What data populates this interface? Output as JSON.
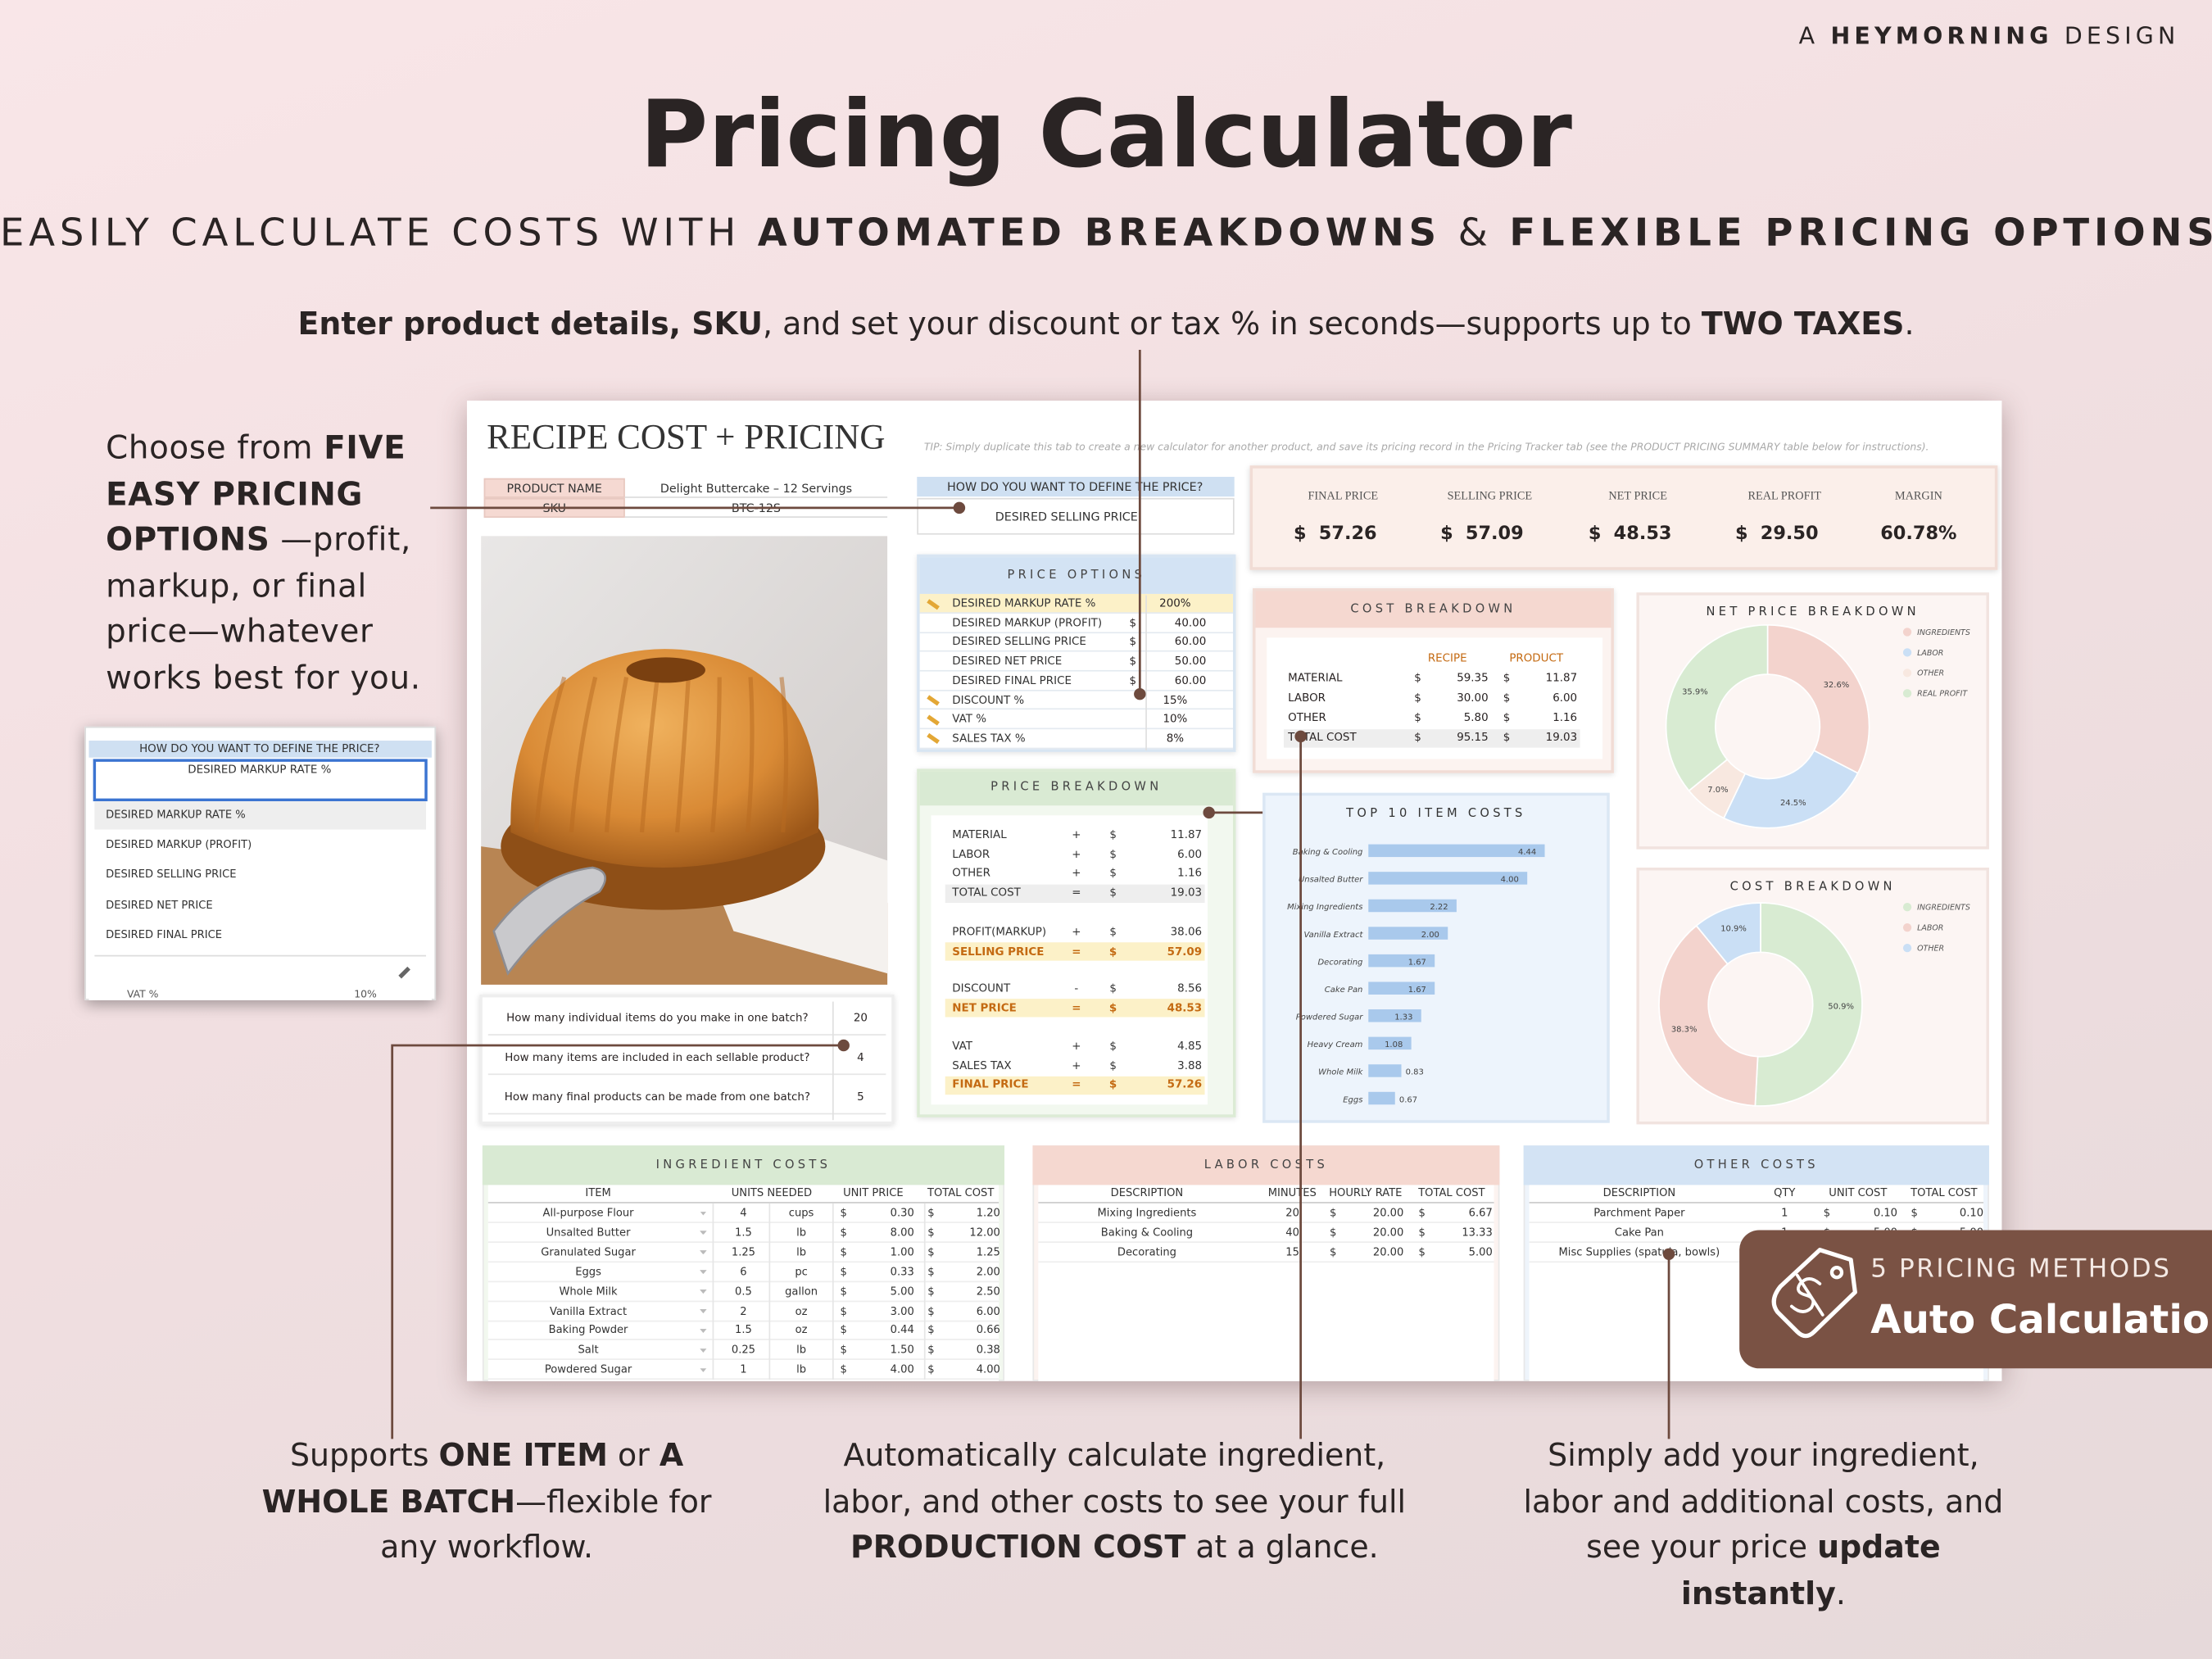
{
  "header": {
    "brand": [
      {
        "text": "A "
      },
      {
        "text": "HEYMORNING",
        "bold": true
      },
      {
        "text": " DESIGN"
      }
    ],
    "title": "Pricing Calculator",
    "subtitle": [
      {
        "text": "EASILY CALCULATE COSTS WITH "
      },
      {
        "text": "AUTOMATED BREAKDOWNS",
        "bold": true
      },
      {
        "text": " & "
      },
      {
        "text": "FLEXIBLE PRICING OPTIONS",
        "bold": true
      }
    ]
  },
  "callouts": {
    "top": [
      {
        "text": "Enter product details, SKU",
        "bold": true
      },
      {
        "text": ", and set your discount or tax % in seconds—supports up to "
      },
      {
        "text": "TWO TAXES",
        "bold": true
      },
      {
        "text": "."
      }
    ],
    "left": [
      {
        "text": "Choose from "
      },
      {
        "text": "FIVE EASY PRICING OPTIONS",
        "bold": true
      },
      {
        "text": " —profit, markup, or final price—whatever works best for you."
      }
    ],
    "bottom_left": [
      {
        "text": "Supports "
      },
      {
        "text": "ONE ITEM",
        "bold": true
      },
      {
        "text": " or "
      },
      {
        "text": "A WHOLE BATCH",
        "bold": true
      },
      {
        "text": "—flexible for any workflow."
      }
    ],
    "bottom_center": [
      {
        "text": "Automatically calculate ingredient, labor, and other costs to see your full "
      },
      {
        "text": "PRODUCTION COST",
        "bold": true
      },
      {
        "text": " at a glance."
      }
    ],
    "bottom_right": [
      {
        "text": "Simply add your ingredient, labor and additional costs, and see your price "
      },
      {
        "text": "update instantly",
        "bold": true
      },
      {
        "text": "."
      }
    ]
  },
  "badge": {
    "line1": "5 PRICING METHODS",
    "line2": "Auto Calculation"
  },
  "sheet": {
    "title": "RECIPE COST + PRICING",
    "tip": "TIP: Simply duplicate this tab to create a new calculator for another product, and save its pricing record in the Pricing Tracker tab (see the PRODUCT PRICING SUMMARY table below for instructions).",
    "product": {
      "rows": [
        [
          "PRODUCT NAME",
          "Delight Buttercake – 12 Servings"
        ],
        [
          "SKU",
          "BTC-12S"
        ]
      ]
    },
    "define": {
      "label": "HOW DO YOU WANT TO DEFINE THE PRICE?",
      "value": "DESIRED SELLING PRICE"
    },
    "summary": [
      [
        "FINAL PRICE",
        "$",
        "57.26"
      ],
      [
        "SELLING PRICE",
        "$",
        "57.09"
      ],
      [
        "NET PRICE",
        "$",
        "48.53"
      ],
      [
        "REAL PROFIT",
        "$",
        "29.50"
      ],
      [
        "MARGIN",
        "60.78%"
      ]
    ],
    "price_options": {
      "title": "PRICE OPTIONS",
      "rows": [
        [
          "DESIRED MARKUP RATE %",
          "200%"
        ],
        [
          "DESIRED MARKUP (PROFIT)",
          "$",
          "40.00"
        ],
        [
          "DESIRED SELLING PRICE",
          "$",
          "60.00"
        ],
        [
          "DESIRED NET PRICE",
          "$",
          "50.00"
        ],
        [
          "DESIRED FINAL PRICE",
          "$",
          "60.00"
        ],
        [
          "DISCOUNT %",
          "15%"
        ],
        [
          "VAT %",
          "10%"
        ],
        [
          "SALES TAX %",
          "8%"
        ]
      ]
    },
    "price_breakdown": {
      "title": "PRICE BREAKDOWN",
      "groups": [
        [
          [
            "MATERIAL",
            "+",
            "$",
            "11.87"
          ],
          [
            "LABOR",
            "+",
            "$",
            "6.00"
          ],
          [
            "OTHER",
            "+",
            "$",
            "1.16"
          ],
          [
            "TOTAL COST",
            "=",
            "$",
            "19.03"
          ]
        ],
        [
          [
            "PROFIT(MARKUP)",
            "+",
            "$",
            "38.06"
          ],
          [
            "SELLING PRICE",
            "=",
            "$",
            "57.09"
          ]
        ],
        [
          [
            "DISCOUNT",
            "-",
            "$",
            "8.56"
          ],
          [
            "NET PRICE",
            "=",
            "$",
            "48.53"
          ]
        ],
        [
          [
            "VAT",
            "+",
            "$",
            "4.85"
          ],
          [
            "SALES TAX",
            "+",
            "$",
            "3.88"
          ],
          [
            "FINAL PRICE",
            "=",
            "$",
            "57.26"
          ]
        ]
      ]
    },
    "cost_breakdown": {
      "title": "COST BREAKDOWN",
      "headers": [
        "RECIPE",
        "PRODUCT"
      ],
      "rows": [
        [
          "MATERIAL",
          "$",
          "59.35",
          "$",
          "11.87"
        ],
        [
          "LABOR",
          "$",
          "30.00",
          "$",
          "6.00"
        ],
        [
          "OTHER",
          "$",
          "5.80",
          "$",
          "1.16"
        ],
        [
          "TOTAL COST",
          "$",
          "95.15",
          "$",
          "19.03"
        ]
      ]
    },
    "batch": {
      "rows": [
        [
          "How many individual items do you make in one batch?",
          "20"
        ],
        [
          "How many items are included in each sellable product?",
          "4"
        ],
        [
          "How many final products can be made from one batch?",
          "5"
        ]
      ]
    },
    "top_items": {
      "type": "bar",
      "title": "TOP 10 ITEM COSTS",
      "color": "#a9c9ec",
      "categories": [
        "Baking & Cooling",
        "Unsalted Butter",
        "Mixing Ingredients",
        "Vanilla Extract",
        "Decorating",
        "Cake Pan",
        "Powdered Sugar",
        "Heavy Cream",
        "Whole Milk",
        "Eggs"
      ],
      "values": [
        4.44,
        4.0,
        2.22,
        2.0,
        1.67,
        1.67,
        1.33,
        1.08,
        0.83,
        0.67
      ],
      "value_labels": [
        "4.44",
        "4.00",
        "2.22",
        "2.00",
        "1.67",
        "1.67",
        "1.33",
        "1.08",
        "0.83",
        "0.67"
      ]
    },
    "net_price_chart": {
      "type": "donut",
      "title": "NET PRICE BREAKDOWN",
      "categories": [
        "INGREDIENTS",
        "LABOR",
        "OTHER",
        "REAL PROFIT"
      ],
      "values": [
        32.6,
        24.5,
        7.0,
        35.9
      ],
      "value_labels": [
        "32.6%",
        "24.5%",
        "7.0%",
        "35.9%"
      ],
      "colors": [
        "#f3d3cd",
        "#cadff5",
        "#f8e8e0",
        "#d8ebd2"
      ]
    },
    "cost_chart": {
      "type": "donut",
      "title": "COST BREAKDOWN",
      "categories": [
        "INGREDIENTS",
        "LABOR",
        "OTHER"
      ],
      "values": [
        50.9,
        38.3,
        10.9
      ],
      "value_labels": [
        "50.9%",
        "38.3%",
        "10.9%"
      ],
      "colors": [
        "#d8ebd2",
        "#f3d3cd",
        "#cadff5"
      ]
    },
    "ingredient_costs": {
      "title": "INGREDIENT COSTS",
      "headers": [
        "ITEM",
        "UNITS NEEDED",
        "UNIT PRICE",
        "TOTAL COST"
      ],
      "rows": [
        [
          "All-purpose Flour",
          "4",
          "cups",
          "$",
          "0.30",
          "$",
          "1.20"
        ],
        [
          "Unsalted Butter",
          "1.5",
          "lb",
          "$",
          "8.00",
          "$",
          "12.00"
        ],
        [
          "Granulated Sugar",
          "1.25",
          "lb",
          "$",
          "1.00",
          "$",
          "1.25"
        ],
        [
          "Eggs",
          "6",
          "pc",
          "$",
          "0.33",
          "$",
          "2.00"
        ],
        [
          "Whole Milk",
          "0.5",
          "gallon",
          "$",
          "5.00",
          "$",
          "2.50"
        ],
        [
          "Vanilla Extract",
          "2",
          "oz",
          "$",
          "3.00",
          "$",
          "6.00"
        ],
        [
          "Baking Powder",
          "1.5",
          "oz",
          "$",
          "0.44",
          "$",
          "0.66"
        ],
        [
          "Salt",
          "0.25",
          "lb",
          "$",
          "1.50",
          "$",
          "0.38"
        ],
        [
          "Powdered Sugar",
          "1",
          "lb",
          "$",
          "4.00",
          "$",
          "4.00"
        ]
      ]
    },
    "labor_costs": {
      "title": "LABOR COSTS",
      "headers": [
        "DESCRIPTION",
        "MINUTES",
        "HOURLY RATE",
        "TOTAL COST"
      ],
      "rows": [
        [
          "Mixing Ingredients",
          "20",
          "$",
          "20.00",
          "$",
          "6.67"
        ],
        [
          "Baking & Cooling",
          "40",
          "$",
          "20.00",
          "$",
          "13.33"
        ],
        [
          "Decorating",
          "15",
          "$",
          "20.00",
          "$",
          "5.00"
        ]
      ]
    },
    "other_costs": {
      "title": "OTHER COSTS",
      "headers": [
        "DESCRIPTION",
        "QTY",
        "UNIT COST",
        "TOTAL COST"
      ],
      "rows": [
        [
          "Parchment Paper",
          "1",
          "$",
          "0.10",
          "$",
          "0.10"
        ],
        [
          "Cake Pan",
          "1",
          "$",
          "5.00",
          "$",
          "5.00"
        ],
        [
          "Misc Supplies (spatula, bowls)"
        ]
      ]
    }
  },
  "dropdown_popup": {
    "label": "HOW DO YOU WANT TO DEFINE THE PRICE?",
    "input": "DESIRED MARKUP RATE %",
    "options": [
      "DESIRED MARKUP RATE %",
      "DESIRED MARKUP (PROFIT)",
      "DESIRED SELLING PRICE",
      "DESIRED NET PRICE",
      "DESIRED FINAL PRICE"
    ],
    "peek": [
      "VAT %",
      "10%"
    ]
  }
}
